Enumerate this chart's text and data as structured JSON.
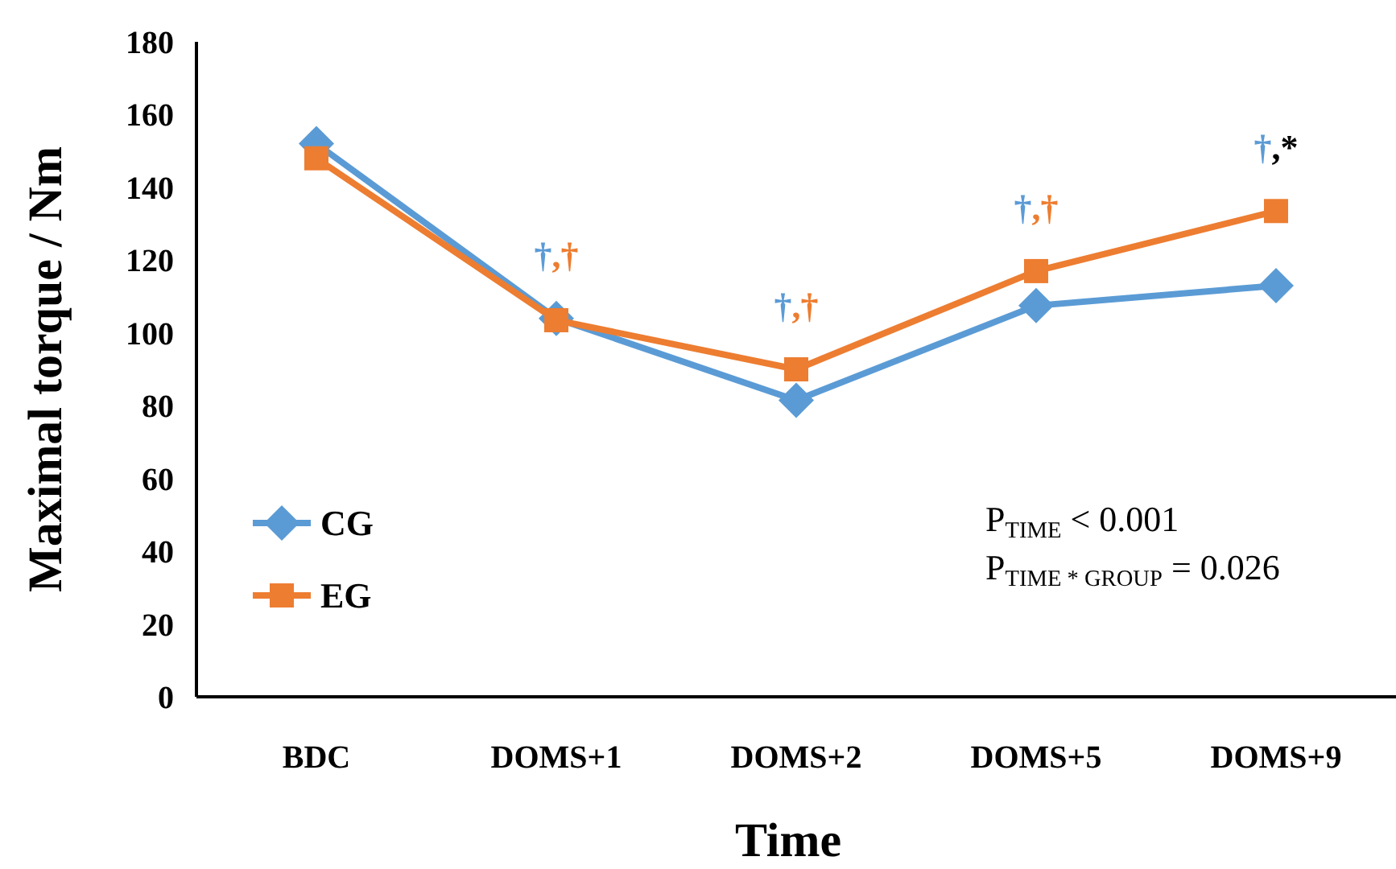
{
  "chart_data": {
    "type": "line",
    "xlabel": "Time",
    "ylabel": "Maximal torque / Nm",
    "categories": [
      "BDC",
      "DOMS+1",
      "DOMS+2",
      "DOMS+5",
      "DOMS+9"
    ],
    "series": [
      {
        "name": "CG",
        "color": "#5b9bd5",
        "marker": "diamond",
        "values": [
          152,
          104,
          81.5,
          107.5,
          113
        ]
      },
      {
        "name": "EG",
        "color": "#ed7d31",
        "marker": "square",
        "values": [
          148,
          103.5,
          90,
          117,
          133.5
        ]
      }
    ],
    "ylim": [
      0,
      180
    ],
    "yticks": [
      0,
      20,
      40,
      60,
      80,
      100,
      120,
      140,
      160,
      180
    ],
    "grid": false,
    "legend": "bottom left",
    "line_style": "solid",
    "annotations": [
      "†,†",
      "†,†",
      "†,†",
      "†,*",
      "P$_{TIME}$ < 0.001",
      "P$_{TIME * GROUP}$ = 0.026"
    ]
  }
}
